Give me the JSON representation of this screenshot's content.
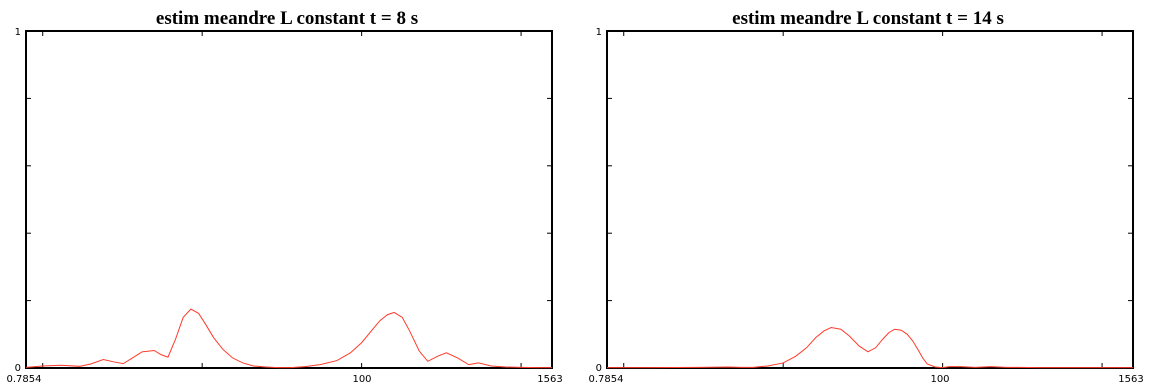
{
  "chart_data": [
    {
      "type": "line",
      "title": "estim meandre L constant t = 8 s",
      "xlabel": "",
      "ylabel": "",
      "x_scale": "log",
      "xlim": [
        0.7854,
        1563
      ],
      "ylim": [
        0,
        1
      ],
      "x_tick_labels": [
        "0.7854",
        "100",
        "1563"
      ],
      "y_tick_labels": [
        "0",
        "1"
      ],
      "grid": false,
      "series": [
        {
          "color": "#ff3a2a",
          "x": [
            0.7854,
            1.0,
            1.3,
            1.7,
            2.0,
            2.4,
            2.8,
            3.2,
            3.6,
            4.2,
            5.0,
            5.5,
            6.1,
            6.8,
            7.6,
            8.5,
            9.5,
            10.5,
            11.8,
            13.5,
            15.5,
            18,
            21,
            25,
            30,
            36,
            44,
            55,
            70,
            85,
            100,
            115,
            130,
            145,
            160,
            180,
            200,
            230,
            260,
            300,
            340,
            400,
            470,
            540,
            650,
            800,
            1000,
            1250,
            1563
          ],
          "y": [
            0.002,
            0.006,
            0.008,
            0.005,
            0.012,
            0.025,
            0.018,
            0.013,
            0.028,
            0.048,
            0.052,
            0.04,
            0.032,
            0.085,
            0.15,
            0.175,
            0.162,
            0.13,
            0.09,
            0.055,
            0.03,
            0.015,
            0.006,
            0.003,
            0.001,
            0.001,
            0.004,
            0.01,
            0.022,
            0.045,
            0.075,
            0.11,
            0.14,
            0.158,
            0.165,
            0.15,
            0.11,
            0.05,
            0.02,
            0.035,
            0.045,
            0.03,
            0.01,
            0.015,
            0.006,
            0.003,
            0.002,
            0.001,
            0.001
          ]
        }
      ]
    },
    {
      "type": "line",
      "title": "estim meandre L constant t = 14 s",
      "xlabel": "",
      "ylabel": "",
      "x_scale": "log",
      "xlim": [
        0.7854,
        1563
      ],
      "ylim": [
        0,
        1
      ],
      "x_tick_labels": [
        "0.7854",
        "100",
        "1563"
      ],
      "y_tick_labels": [
        "0",
        "1"
      ],
      "grid": false,
      "series": [
        {
          "color": "#ff3a2a",
          "x": [
            0.7854,
            1.5,
            3.0,
            4.5,
            5.5,
            6.5,
            8,
            10,
            12,
            14,
            16,
            18,
            20,
            23,
            26,
            30,
            34,
            38,
            42,
            46,
            50,
            55,
            60,
            65,
            70,
            75,
            80,
            90,
            100,
            110,
            130,
            160,
            200,
            250,
            300,
            400,
            600,
            900,
            1563
          ],
          "y": [
            0.001,
            0.001,
            0.002,
            0.003,
            0.002,
            0.002,
            0.006,
            0.015,
            0.035,
            0.06,
            0.09,
            0.11,
            0.12,
            0.115,
            0.095,
            0.065,
            0.048,
            0.06,
            0.085,
            0.105,
            0.115,
            0.112,
            0.1,
            0.08,
            0.055,
            0.03,
            0.012,
            0.003,
            0.001,
            0.004,
            0.004,
            0.002,
            0.004,
            0.002,
            0.002,
            0.001,
            0.001,
            0.001,
            0.001
          ]
        }
      ]
    }
  ]
}
